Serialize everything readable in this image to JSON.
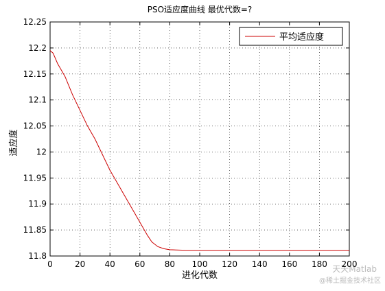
{
  "chart_data": {
    "type": "line",
    "title": "PSO适应度曲线  最优代数=?",
    "x_label": "进化代数",
    "y_label": "适应度",
    "x": [
      0,
      2,
      5,
      10,
      15,
      20,
      25,
      30,
      35,
      40,
      45,
      50,
      55,
      60,
      65,
      68,
      72,
      76,
      80,
      90,
      100,
      150,
      200
    ],
    "series": [
      {
        "name": "平均适应度",
        "color": "#cc0000",
        "values": [
          12.195,
          12.19,
          12.17,
          12.145,
          12.11,
          12.08,
          12.05,
          12.025,
          11.995,
          11.965,
          11.94,
          11.915,
          11.89,
          11.865,
          11.84,
          11.827,
          11.818,
          11.814,
          11.812,
          11.811,
          11.811,
          11.811,
          11.811
        ]
      }
    ],
    "xlim": [
      0,
      200
    ],
    "xticks": [
      0,
      20,
      40,
      60,
      80,
      100,
      120,
      140,
      160,
      180,
      200
    ],
    "ylim": [
      11.8,
      12.25
    ],
    "yticks": [
      11.8,
      11.85,
      11.9,
      11.95,
      12,
      12.05,
      12.1,
      12.15,
      12.2,
      12.25
    ],
    "grid": true,
    "legend": "top-right",
    "watermark": [
      "天天Matlab",
      "@稀土掘金技术社区"
    ]
  }
}
